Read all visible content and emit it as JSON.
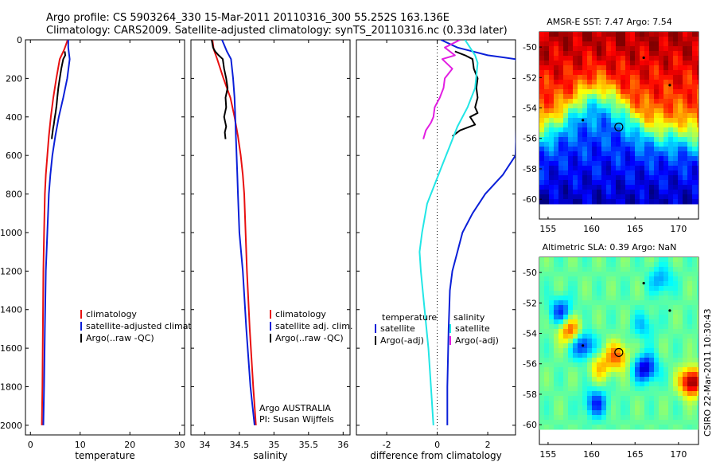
{
  "header": {
    "line1": "Argo profile: CS 5903264_330 15-Mar-2011 20110316_300 55.252S 163.136E",
    "line2": "Climatology: CARS2009. Satellite-adjusted climatology: synTS_20110316.nc (0.33d later)"
  },
  "side_text": "CSIRO 22-Mar-2011 10:30:43",
  "colors": {
    "red": "#e81010",
    "blue": "#0a1fd8",
    "black": "#000000",
    "cyan": "#22e6e6",
    "magenta": "#e21ee2"
  },
  "chart_data": [
    {
      "type": "line",
      "id": "temperature",
      "xlabel": "temperature",
      "ylabel": "",
      "xlim": [
        -1,
        31
      ],
      "ylim": [
        2050,
        0
      ],
      "xticks": [
        0,
        10,
        20,
        30
      ],
      "yticks": [
        0,
        200,
        400,
        600,
        800,
        1000,
        1200,
        1400,
        1600,
        1800,
        2000
      ],
      "series": [
        {
          "name": "climatology",
          "color": "red",
          "x": [
            7.5,
            6.8,
            5.9,
            5.2,
            4.6,
            4.1,
            3.7,
            3.4,
            3.1,
            2.9,
            2.75,
            2.6,
            2.5,
            2.4,
            2.3
          ],
          "y": [
            0,
            50,
            100,
            200,
            300,
            400,
            500,
            600,
            700,
            800,
            1000,
            1200,
            1500,
            1800,
            2000
          ]
        },
        {
          "name": "satellite-adjusted climatology",
          "color": "blue",
          "x": [
            7.6,
            7.6,
            7.9,
            7.4,
            6.6,
            5.7,
            5.0,
            4.4,
            4.0,
            3.7,
            3.4,
            3.1,
            2.9,
            2.75,
            2.6
          ],
          "y": [
            0,
            40,
            100,
            200,
            300,
            400,
            500,
            600,
            700,
            800,
            1000,
            1200,
            1500,
            1800,
            2000
          ]
        },
        {
          "name": "Argo(..raw -QC)",
          "color": "black",
          "x": [
            6.9,
            7.0,
            6.6,
            6.2,
            5.9,
            5.6,
            5.4,
            5.25,
            5.05,
            4.85,
            4.7,
            4.55,
            4.45,
            4.35,
            4.3
          ],
          "y": [
            60,
            80,
            100,
            150,
            200,
            250,
            300,
            340,
            380,
            410,
            440,
            460,
            480,
            500,
            515
          ]
        }
      ],
      "legend": {
        "placement": "lower-right",
        "entries": [
          "climatology",
          "satellite-adjusted climatology",
          "Argo(..raw -QC)"
        ]
      }
    },
    {
      "type": "line",
      "id": "salinity",
      "xlabel": "salinity",
      "xlim": [
        33.8,
        36.1
      ],
      "ylim": [
        2050,
        0
      ],
      "xticks": [
        34,
        34.5,
        35,
        35.5,
        36
      ],
      "series": [
        {
          "name": "climatology",
          "color": "red",
          "x": [
            34.11,
            34.13,
            34.18,
            34.27,
            34.37,
            34.43,
            34.48,
            34.52,
            34.55,
            34.57,
            34.59,
            34.61,
            34.65,
            34.7,
            34.74
          ],
          "y": [
            0,
            50,
            100,
            200,
            300,
            400,
            500,
            600,
            700,
            800,
            1000,
            1200,
            1500,
            1800,
            2000
          ]
        },
        {
          "name": "satellite adj. clim.",
          "color": "blue",
          "x": [
            34.25,
            34.32,
            34.38,
            34.41,
            34.43,
            34.44,
            34.45,
            34.46,
            34.47,
            34.48,
            34.5,
            34.55,
            34.6,
            34.66,
            34.72
          ],
          "y": [
            0,
            60,
            100,
            200,
            300,
            400,
            500,
            600,
            700,
            800,
            1000,
            1200,
            1500,
            1800,
            2000
          ]
        },
        {
          "name": "Argo(..raw -QC)",
          "color": "black",
          "x": [
            34.1,
            34.12,
            34.15,
            34.2,
            34.26,
            34.28,
            34.31,
            34.33,
            34.3,
            34.31,
            34.28,
            34.31,
            34.29,
            34.3
          ],
          "y": [
            0,
            40,
            60,
            80,
            100,
            150,
            200,
            250,
            300,
            350,
            400,
            450,
            480,
            515
          ]
        }
      ],
      "legend": {
        "placement": "lower-right",
        "entries": [
          "climatology",
          "satellite adj. clim.",
          "Argo(..raw -QC)"
        ]
      },
      "annotation": [
        "Argo AUSTRALIA",
        "PI: Susan Wijffels"
      ]
    },
    {
      "type": "line",
      "id": "difference",
      "xlabel": "difference from climatology",
      "xlim": [
        -3.2,
        3.1
      ],
      "ylim": [
        2050,
        0
      ],
      "xticks": [
        -2,
        0,
        2
      ],
      "reference_line_x": 0,
      "series": [
        {
          "name": "satellite",
          "group": "temperature",
          "color": "blue",
          "x": [
            0.15,
            0.8,
            2.0,
            3.1,
            3.2,
            3.1,
            2.6,
            1.9,
            1.4,
            1.0,
            0.8,
            0.6,
            0.5,
            0.45,
            0.4,
            0.4
          ],
          "y": [
            0,
            40,
            80,
            100,
            140,
            600,
            700,
            800,
            900,
            1000,
            1100,
            1200,
            1300,
            1500,
            1800,
            2000
          ]
        },
        {
          "name": "Argo(-adj)",
          "group": "temperature",
          "color": "black",
          "x": [
            0.7,
            1.1,
            1.4,
            1.45,
            1.6,
            1.55,
            1.6,
            1.5,
            1.6,
            1.3,
            1.5,
            0.9,
            0.6
          ],
          "y": [
            60,
            80,
            100,
            150,
            200,
            250,
            300,
            350,
            380,
            400,
            440,
            470,
            500
          ]
        },
        {
          "name": "satellite",
          "group": "salinity",
          "color": "cyan",
          "x": [
            1.1,
            1.5,
            1.6,
            1.5,
            1.2,
            0.8,
            0.5,
            0.2,
            -0.1,
            -0.4,
            -0.6,
            -0.7,
            -0.65,
            -0.5,
            -0.35,
            -0.25,
            -0.15
          ],
          "y": [
            0,
            80,
            120,
            250,
            350,
            450,
            550,
            650,
            750,
            850,
            1000,
            1100,
            1200,
            1400,
            1600,
            1800,
            2000
          ]
        },
        {
          "name": "Argo(-adj)",
          "group": "salinity",
          "color": "magenta",
          "x": [
            0.9,
            0.3,
            0.7,
            0.2,
            0.6,
            0.3,
            0.25,
            0.1,
            -0.1,
            -0.15,
            -0.25,
            -0.45,
            -0.55
          ],
          "y": [
            0,
            40,
            80,
            100,
            150,
            200,
            250,
            300,
            350,
            400,
            430,
            470,
            515
          ]
        }
      ],
      "legend": {
        "placement": "lower-right",
        "groups": [
          {
            "title": "temperature",
            "entries": [
              "satellite",
              "Argo(-adj)"
            ]
          },
          {
            "title": "salinity",
            "entries": [
              "satellite",
              "Argo(-adj)"
            ]
          }
        ]
      }
    },
    {
      "type": "heatmap",
      "id": "sst_map",
      "title": "AMSR-E SST: 7.47 Argo: 7.54",
      "xlim": [
        154,
        172.3
      ],
      "ylim": [
        -61.3,
        -49
      ],
      "xticks": [
        155,
        160,
        165,
        170
      ],
      "yticks": [
        -50,
        -52,
        -54,
        -56,
        -58,
        -60
      ],
      "marker": {
        "lon": 163.136,
        "lat": -55.252
      }
    },
    {
      "type": "heatmap",
      "id": "sla_map",
      "title": "Altimetric SLA: 0.39 Argo: NaN",
      "xlim": [
        154,
        172.3
      ],
      "ylim": [
        -61.3,
        -49
      ],
      "xticks": [
        155,
        160,
        165,
        170
      ],
      "yticks": [
        -50,
        -52,
        -54,
        -56,
        -58,
        -60
      ],
      "marker": {
        "lon": 163.136,
        "lat": -55.252
      }
    }
  ]
}
